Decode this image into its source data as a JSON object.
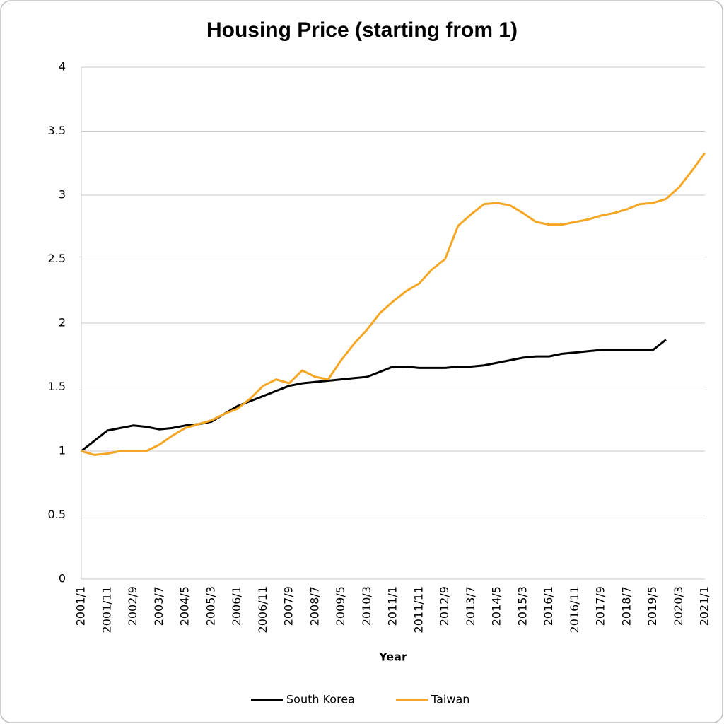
{
  "chart_data": {
    "type": "line",
    "title": "Housing Price (starting from 1)",
    "x_label": "Year",
    "categories": [
      "2001/1",
      null,
      "2001/11",
      null,
      "2002/9",
      null,
      "2003/7",
      null,
      "2004/5",
      null,
      "2005/3",
      null,
      "2006/1",
      null,
      "2006/11",
      null,
      "2007/9",
      null,
      "2008/7",
      null,
      "2009/5",
      null,
      "2010/3",
      null,
      "2011/1",
      null,
      "2011/11",
      null,
      "2012/9",
      null,
      "2013/7",
      null,
      "2014/5",
      null,
      "2015/3",
      null,
      "2016/1",
      null,
      "2016/11",
      null,
      "2017/9",
      null,
      "2018/7",
      null,
      "2019/5",
      null,
      "2020/3",
      null,
      "2021/1"
    ],
    "series": [
      {
        "name": "South Korea",
        "color": "#000000",
        "values": [
          1.0,
          1.08,
          1.16,
          1.18,
          1.2,
          1.19,
          1.17,
          1.18,
          1.2,
          1.21,
          1.23,
          1.29,
          1.35,
          1.39,
          1.43,
          1.47,
          1.51,
          1.53,
          1.54,
          1.55,
          1.56,
          1.57,
          1.58,
          1.62,
          1.66,
          1.66,
          1.65,
          1.65,
          1.65,
          1.66,
          1.66,
          1.67,
          1.69,
          1.71,
          1.73,
          1.74,
          1.74,
          1.76,
          1.77,
          1.78,
          1.79,
          1.79,
          1.79,
          1.79,
          1.79,
          1.87,
          null,
          null,
          null
        ]
      },
      {
        "name": "Taiwan",
        "color": "#f5a623",
        "values": [
          1.0,
          0.97,
          0.98,
          1.0,
          1.0,
          1.0,
          1.05,
          1.12,
          1.18,
          1.21,
          1.24,
          1.29,
          1.33,
          1.41,
          1.51,
          1.56,
          1.53,
          1.63,
          1.58,
          1.56,
          1.71,
          1.84,
          1.95,
          2.08,
          2.17,
          2.25,
          2.31,
          2.42,
          2.5,
          2.76,
          2.85,
          2.93,
          2.94,
          2.92,
          2.86,
          2.79,
          2.77,
          2.77,
          2.79,
          2.81,
          2.84,
          2.86,
          2.89,
          2.93,
          2.94,
          2.97,
          3.06,
          3.19,
          3.33
        ]
      }
    ],
    "ylim": [
      0,
      4
    ],
    "yticks": [
      0,
      0.5,
      1,
      1.5,
      2,
      2.5,
      3,
      3.5,
      4
    ],
    "grid": true,
    "legend": "bottom"
  }
}
